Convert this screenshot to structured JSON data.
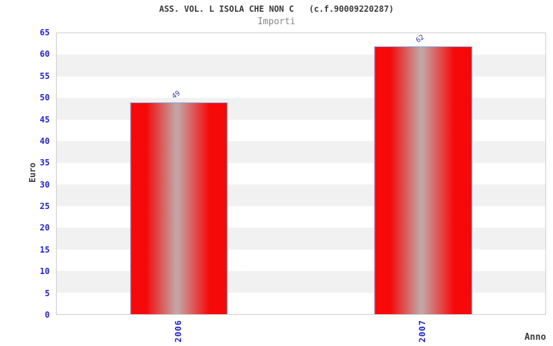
{
  "chart_data": {
    "type": "bar",
    "title": "ASS. VOL. L ISOLA CHE NON C   (c.f.90009220287)",
    "subtitle": "Importi",
    "xlabel": "Anno",
    "ylabel": "Euro",
    "categories": [
      "2006",
      "2007"
    ],
    "values": [
      49,
      62
    ],
    "bar_value_labels": [
      "49",
      "62"
    ],
    "ylim": [
      0,
      65
    ],
    "yticks": [
      0,
      5,
      10,
      15,
      20,
      25,
      30,
      35,
      40,
      45,
      50,
      55,
      60,
      65
    ],
    "grid": "alternating-horizontal-stripes",
    "legend_position": "none",
    "colors": {
      "bar_fill": "#f60909",
      "bar_highlight": "#c2a6a6",
      "bar_border": "#7aa7e0",
      "axis_tick_text": "#2424cf",
      "value_label_text": "#3a3a99",
      "stripe": "#f1f1f1",
      "plot_border": "#cccccc",
      "title_text": "#3a3a3a",
      "subtitle_text": "#878787"
    }
  }
}
